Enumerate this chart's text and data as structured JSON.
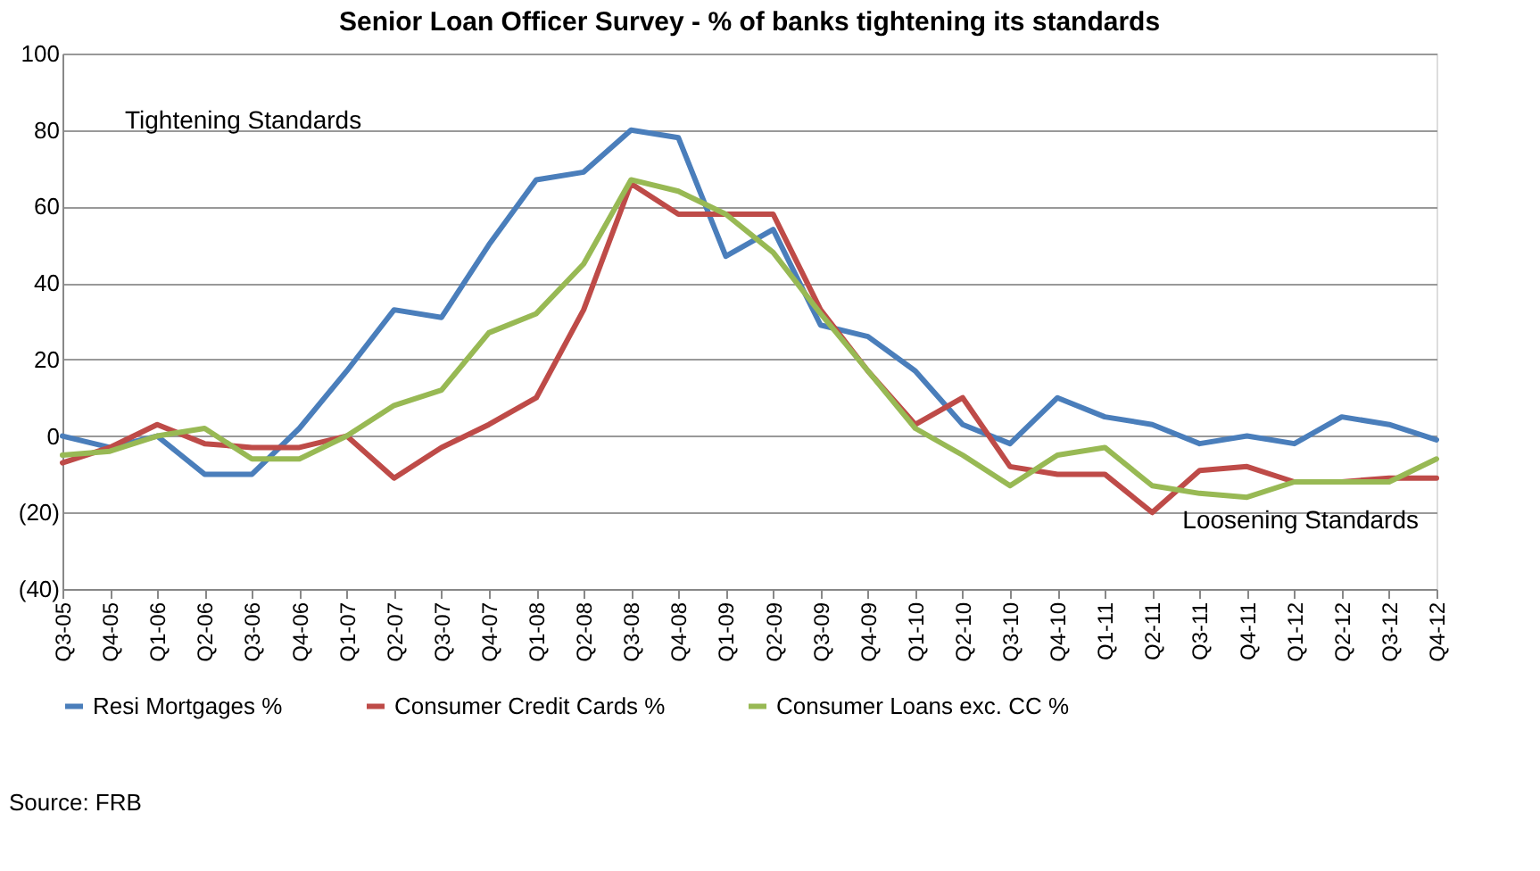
{
  "chart_data": {
    "type": "line",
    "title": "Senior Loan Officer Survey - % of banks tightening its standards",
    "categories": [
      "Q3-05",
      "Q4-05",
      "Q1-06",
      "Q2-06",
      "Q3-06",
      "Q4-06",
      "Q1-07",
      "Q2-07",
      "Q3-07",
      "Q4-07",
      "Q1-08",
      "Q2-08",
      "Q3-08",
      "Q4-08",
      "Q1-09",
      "Q2-09",
      "Q3-09",
      "Q4-09",
      "Q1-10",
      "Q2-10",
      "Q3-10",
      "Q4-10",
      "Q1-11",
      "Q2-11",
      "Q3-11",
      "Q4-11",
      "Q1-12",
      "Q2-12",
      "Q3-12",
      "Q4-12"
    ],
    "series": [
      {
        "name": "Resi Mortgages %",
        "color": "#4a7ebb",
        "values": [
          0,
          -3,
          0,
          -10,
          -10,
          2,
          17,
          33,
          31,
          50,
          67,
          69,
          80,
          78,
          47,
          54,
          29,
          26,
          17,
          3,
          -2,
          10,
          5,
          3,
          -2,
          0,
          -2,
          5,
          3,
          -1
        ]
      },
      {
        "name": "Consumer Credit Cards %",
        "color": "#be4b48",
        "values": [
          -7,
          -3,
          3,
          -2,
          -3,
          -3,
          0,
          -11,
          -3,
          3,
          10,
          33,
          66,
          58,
          58,
          58,
          33,
          17,
          3,
          10,
          -8,
          -10,
          -10,
          -20,
          -9,
          -8,
          -12,
          -12,
          -11,
          -11
        ]
      },
      {
        "name": "Consumer Loans exc. CC %",
        "color": "#98b954",
        "values": [
          -5,
          -4,
          0,
          2,
          -6,
          -6,
          0,
          8,
          12,
          27,
          32,
          45,
          67,
          64,
          58,
          48,
          32,
          17,
          2,
          -5,
          -13,
          -5,
          -3,
          -13,
          -15,
          -16,
          -12,
          -12,
          -12,
          -6
        ]
      }
    ],
    "ylim": [
      -40,
      100
    ],
    "yticks": [
      {
        "value": -40,
        "label": "(40)"
      },
      {
        "value": -20,
        "label": "(20)"
      },
      0,
      20,
      40,
      60,
      80,
      100
    ],
    "grid": "y",
    "legend": "bottom",
    "annotations": [
      "Tightening Standards",
      "Loosening Standards",
      "Source: FRB"
    ]
  }
}
